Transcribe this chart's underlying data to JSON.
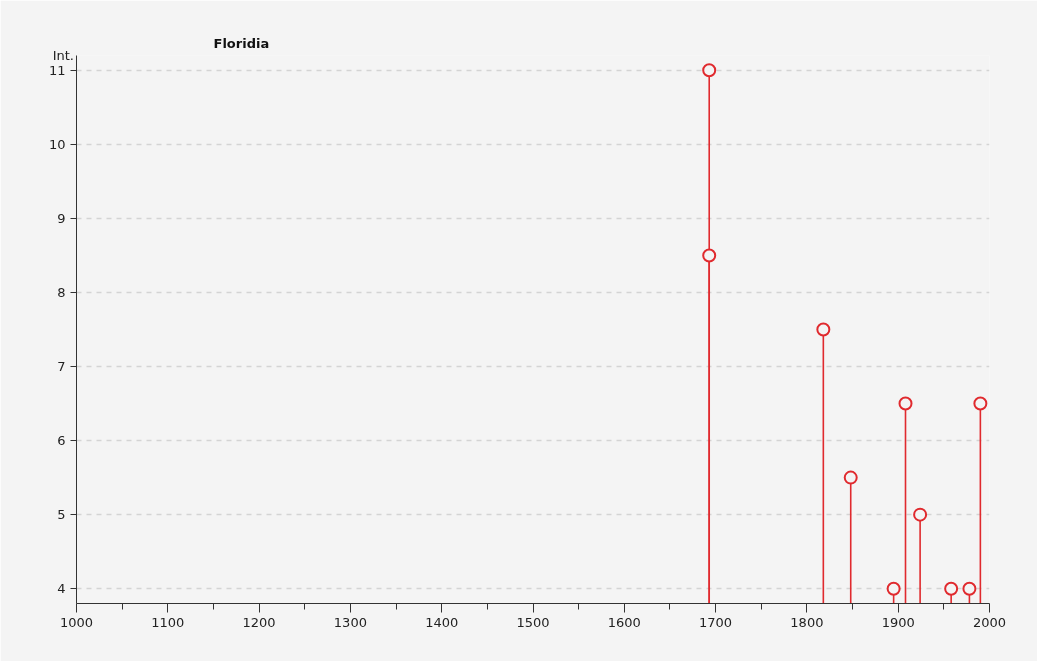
{
  "chart_data": {
    "type": "lollipop",
    "title": "Floridia",
    "ylabel": "Int.",
    "x": [
      1693,
      1693,
      1818,
      1848,
      1895,
      1908,
      1924,
      1958,
      1978,
      1990
    ],
    "series": [
      {
        "color": "#e02a2e",
        "values": [
          11,
          8.5,
          7.5,
          5.5,
          4,
          6.5,
          5,
          4,
          4,
          6.5
        ]
      }
    ],
    "xlim": [
      1000,
      2000
    ],
    "ylim": [
      3.8,
      11.2
    ],
    "xticks": [
      1000,
      {
        "value": 1050,
        "label": null
      },
      1100,
      {
        "value": 1150,
        "label": null
      },
      1200,
      {
        "value": 1250,
        "label": null
      },
      1300,
      {
        "value": 1350,
        "label": null
      },
      1400,
      {
        "value": 1450,
        "label": null
      },
      1500,
      {
        "value": 1550,
        "label": null
      },
      1600,
      {
        "value": 1650,
        "label": null
      },
      1700,
      {
        "value": 1750,
        "label": null
      },
      1800,
      {
        "value": 1850,
        "label": null
      },
      1900,
      {
        "value": 1950,
        "label": null
      },
      2000
    ],
    "yticks": [
      4,
      5,
      6,
      7,
      8,
      9,
      10,
      11
    ],
    "grid": "y",
    "marker": "circle"
  }
}
